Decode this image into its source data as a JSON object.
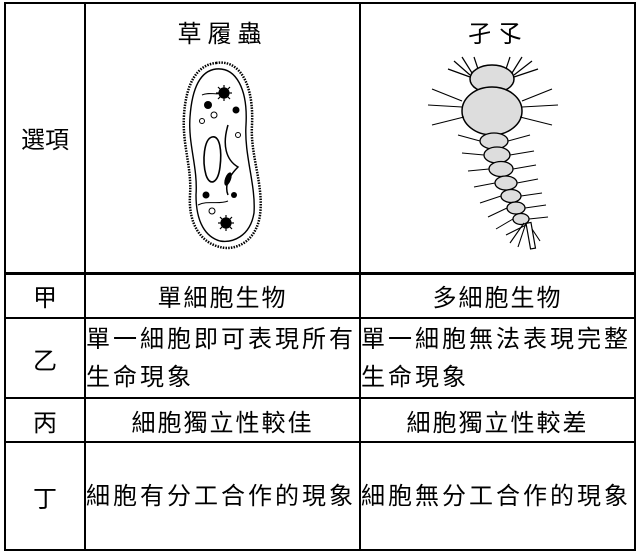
{
  "table": {
    "header": {
      "row_label": "選項",
      "col1": "草履蟲",
      "col2": "孑孓"
    },
    "rows": [
      {
        "label": "甲",
        "col1": "單細胞生物",
        "col2": "多細胞生物"
      },
      {
        "label": "乙",
        "col1": "單一細胞即可表現所有生命現象",
        "col2": "單一細胞無法表現完整生命現象"
      },
      {
        "label": "丙",
        "col1": "細胞獨立性較佳",
        "col2": "細胞獨立性較差"
      },
      {
        "label": "丁",
        "col1": "細胞有分工合作的現象",
        "col2": "細胞無分工合作的現象"
      }
    ]
  }
}
